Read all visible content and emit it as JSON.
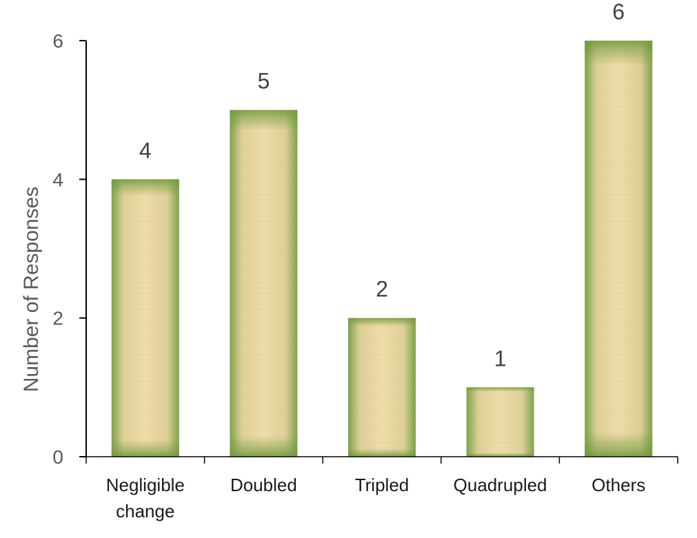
{
  "chart_data": {
    "type": "bar",
    "title": "",
    "xlabel": "",
    "ylabel": "Number of Responses",
    "categories": [
      [
        "Negligible",
        "change"
      ],
      [
        "Doubled"
      ],
      [
        "Tripled"
      ],
      [
        "Quadrupled"
      ],
      [
        "Others"
      ]
    ],
    "values": [
      4,
      5,
      2,
      1,
      6
    ],
    "ylim": [
      0,
      6
    ],
    "yticks": [
      0,
      2,
      4,
      6
    ],
    "data_labels": true,
    "grid": false,
    "legend": "none",
    "colors": {
      "bar_center": "#efdcaa",
      "bar_mid": "#ddd098",
      "bar_edge": "#7fa24a",
      "axis": "#000000"
    }
  }
}
